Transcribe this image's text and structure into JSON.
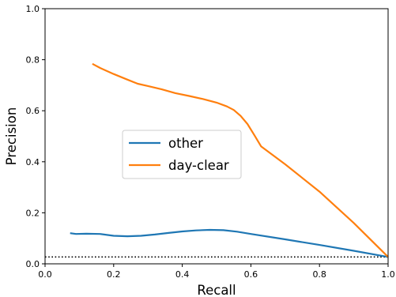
{
  "chart_data": {
    "type": "line",
    "title": "",
    "xlabel": "Recall",
    "ylabel": "Precision",
    "xlim": [
      0.0,
      1.0
    ],
    "ylim": [
      0.0,
      1.0
    ],
    "xticks": [
      "0.0",
      "0.2",
      "0.4",
      "0.6",
      "0.8",
      "1.0"
    ],
    "yticks": [
      "0.0",
      "0.2",
      "0.4",
      "0.6",
      "0.8",
      "1.0"
    ],
    "grid": false,
    "legend_position": "center-left",
    "baseline": {
      "y": 0.027,
      "style": "dotted",
      "color": "#000000"
    },
    "series": [
      {
        "name": "other",
        "color": "#1f77b4",
        "x": [
          0.073,
          0.09,
          0.12,
          0.16,
          0.2,
          0.24,
          0.28,
          0.32,
          0.36,
          0.4,
          0.44,
          0.48,
          0.52,
          0.56,
          0.6,
          0.7,
          0.8,
          0.9,
          1.0
        ],
        "y": [
          0.12,
          0.117,
          0.118,
          0.117,
          0.11,
          0.108,
          0.11,
          0.115,
          0.121,
          0.127,
          0.131,
          0.133,
          0.132,
          0.126,
          0.117,
          0.096,
          0.074,
          0.051,
          0.027
        ]
      },
      {
        "name": "day-clear",
        "color": "#ff7f0e",
        "x": [
          0.138,
          0.16,
          0.2,
          0.24,
          0.27,
          0.3,
          0.34,
          0.38,
          0.42,
          0.46,
          0.5,
          0.53,
          0.55,
          0.57,
          0.59,
          0.61,
          0.63,
          0.7,
          0.8,
          0.9,
          1.0
        ],
        "y": [
          0.784,
          0.768,
          0.744,
          0.722,
          0.706,
          0.697,
          0.684,
          0.669,
          0.658,
          0.646,
          0.632,
          0.617,
          0.603,
          0.58,
          0.548,
          0.505,
          0.46,
          0.39,
          0.283,
          0.16,
          0.027
        ]
      }
    ]
  }
}
